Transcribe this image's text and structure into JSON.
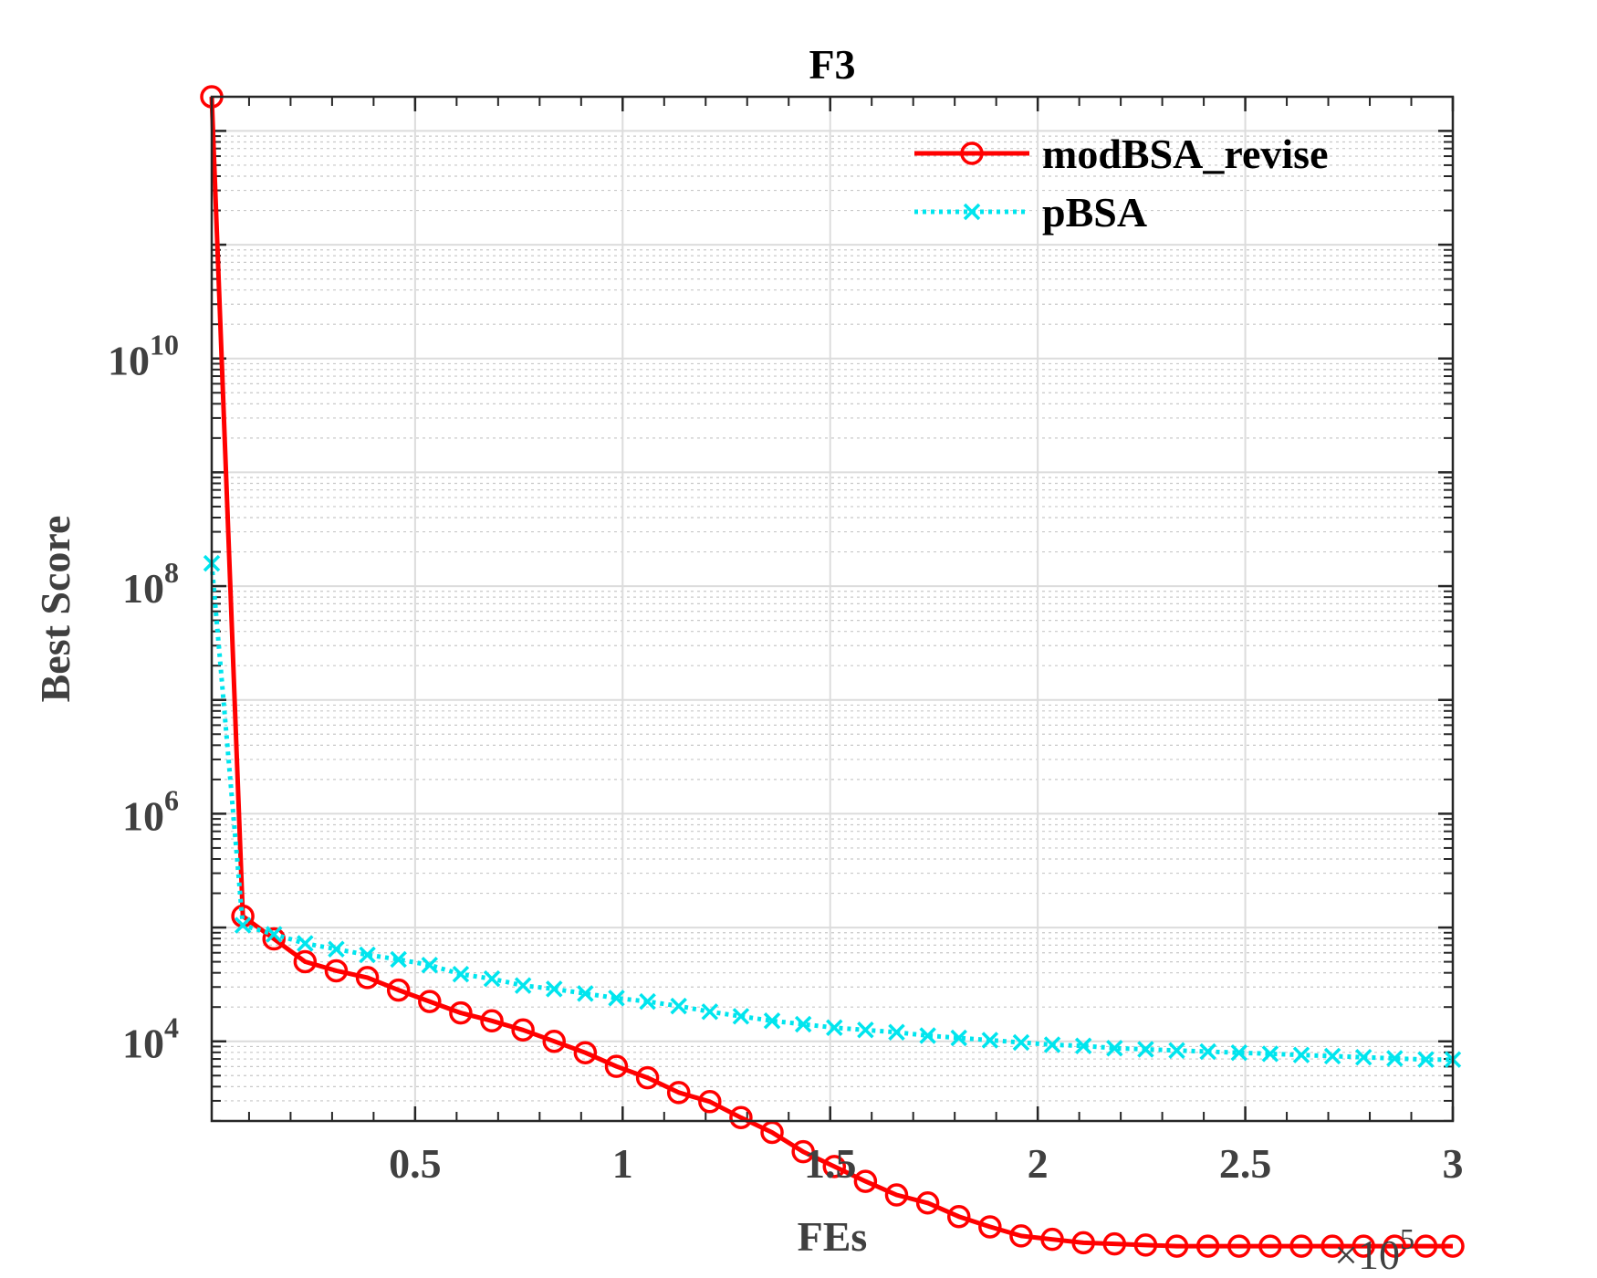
{
  "chart_data": {
    "type": "line",
    "title": "F3",
    "xlabel": "FEs",
    "ylabel": "Best Score",
    "x_exponent_label": "×10",
    "x_exponent_power": "5",
    "x_scale_factor": 100000,
    "xlim": [
      0.01,
      3.0
    ],
    "ylim_log10": [
      3.3,
      12.3
    ],
    "yscale": "log",
    "x_ticks": [
      "0.5",
      "1",
      "1.5",
      "2",
      "2.5",
      "3"
    ],
    "x_tick_values": [
      0.5,
      1,
      1.5,
      2,
      2.5,
      3
    ],
    "y_ticks": [
      {
        "base": "10",
        "exp": "4",
        "log": 4
      },
      {
        "base": "10",
        "exp": "6",
        "log": 6
      },
      {
        "base": "10",
        "exp": "8",
        "log": 8
      },
      {
        "base": "10",
        "exp": "10",
        "log": 10
      }
    ],
    "grid": true,
    "legend_position": "top-right",
    "series": [
      {
        "name": "modBSA_revise",
        "color": "#ff0000",
        "style": "solid",
        "marker": "circle",
        "x": [
          0.01,
          0.085,
          0.16,
          0.235,
          0.31,
          0.385,
          0.46,
          0.535,
          0.61,
          0.685,
          0.76,
          0.835,
          0.91,
          0.985,
          1.06,
          1.135,
          1.21,
          1.285,
          1.36,
          1.435,
          1.51,
          1.585,
          1.66,
          1.735,
          1.81,
          1.885,
          1.96,
          2.035,
          2.11,
          2.185,
          2.26,
          2.335,
          2.41,
          2.485,
          2.56,
          2.635,
          2.71,
          2.785,
          2.86,
          2.935,
          3.0
        ],
        "log10_y": [
          12.3,
          5.1,
          4.9,
          4.7,
          4.62,
          4.56,
          4.45,
          4.35,
          4.25,
          4.18,
          4.1,
          4.0,
          3.9,
          3.78,
          3.68,
          3.55,
          3.47,
          3.33,
          3.2,
          3.03,
          2.9,
          2.77,
          2.65,
          2.58,
          2.46,
          2.37,
          2.29,
          2.26,
          2.23,
          2.22,
          2.21,
          2.2,
          2.2,
          2.2,
          2.2,
          2.2,
          2.2,
          2.2,
          2.2,
          2.2,
          2.2
        ]
      },
      {
        "name": "pBSA",
        "color": "#00e5ee",
        "style": "dotted",
        "marker": "x",
        "x": [
          0.01,
          0.085,
          0.16,
          0.235,
          0.31,
          0.385,
          0.46,
          0.535,
          0.61,
          0.685,
          0.76,
          0.835,
          0.91,
          0.985,
          1.06,
          1.135,
          1.21,
          1.285,
          1.36,
          1.435,
          1.51,
          1.585,
          1.66,
          1.735,
          1.81,
          1.885,
          1.96,
          2.035,
          2.11,
          2.185,
          2.26,
          2.335,
          2.41,
          2.485,
          2.56,
          2.635,
          2.71,
          2.785,
          2.86,
          2.935,
          3.0
        ],
        "log10_y": [
          8.2,
          5.02,
          4.94,
          4.86,
          4.81,
          4.76,
          4.72,
          4.67,
          4.59,
          4.55,
          4.49,
          4.46,
          4.42,
          4.38,
          4.35,
          4.31,
          4.26,
          4.22,
          4.18,
          4.15,
          4.12,
          4.1,
          4.08,
          4.05,
          4.03,
          4.01,
          3.99,
          3.97,
          3.96,
          3.94,
          3.93,
          3.92,
          3.91,
          3.9,
          3.89,
          3.88,
          3.87,
          3.86,
          3.85,
          3.84,
          3.84
        ]
      }
    ]
  }
}
